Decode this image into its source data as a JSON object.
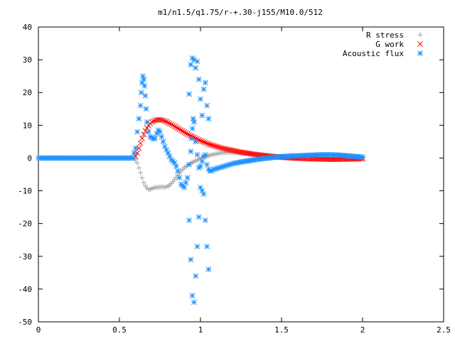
{
  "chart_data": {
    "type": "scatter",
    "title": "m1/n1.5/q1.75/r-+.30-j155/M10.0/512",
    "xlabel": "",
    "ylabel": "",
    "xlim": [
      0,
      2.5
    ],
    "ylim": [
      -50,
      40
    ],
    "x_ticks": [
      0,
      0.5,
      1,
      1.5,
      2,
      2.5
    ],
    "x_tick_labels": [
      "0",
      "0.5",
      "1",
      "1.5",
      "2",
      "2.5"
    ],
    "y_ticks": [
      40,
      30,
      20,
      10,
      0,
      -10,
      -20,
      -30,
      -40,
      -50
    ],
    "y_tick_labels": [
      "40",
      "30",
      "20",
      "10",
      "0",
      "-10",
      "-20",
      "-30",
      "-40",
      "-50"
    ],
    "grid": false,
    "legend_position": "top-right",
    "series": [
      {
        "name": "R stress",
        "marker": "plus",
        "color": "#a0a0a0",
        "x": [
          0.0,
          0.1,
          0.2,
          0.3,
          0.4,
          0.5,
          0.58,
          0.6,
          0.61,
          0.62,
          0.63,
          0.64,
          0.65,
          0.66,
          0.67,
          0.68,
          0.69,
          0.7,
          0.72,
          0.74,
          0.76,
          0.78,
          0.8,
          0.82,
          0.84,
          0.86,
          0.88,
          0.9,
          0.92,
          0.94,
          0.96,
          0.98,
          1.0,
          1.02,
          1.04,
          1.06,
          1.08,
          1.1,
          1.12,
          1.14,
          1.16,
          1.18,
          1.2,
          1.25,
          1.3,
          1.35,
          1.4,
          1.45,
          1.5,
          1.55,
          1.6,
          1.65,
          1.7,
          1.75,
          1.8,
          1.85,
          1.9,
          1.95,
          2.0
        ],
        "y": [
          0,
          0,
          0,
          0,
          0,
          0,
          0,
          -0.5,
          -1.5,
          -3,
          -4.5,
          -6,
          -7.5,
          -8.5,
          -9.2,
          -9.6,
          -9.6,
          -9.3,
          -9.0,
          -8.9,
          -8.8,
          -8.9,
          -8.6,
          -7.8,
          -6.5,
          -5.2,
          -4.0,
          -3.0,
          -2.2,
          -1.6,
          -1.1,
          -0.6,
          -0.1,
          0.3,
          0.6,
          0.9,
          1.1,
          1.3,
          1.5,
          1.6,
          1.7,
          1.7,
          1.6,
          1.5,
          1.3,
          1.1,
          0.9,
          0.7,
          0.5,
          0.4,
          0.3,
          0.2,
          0.1,
          0.05,
          0.0,
          0.0,
          0.0,
          0.0,
          0.0
        ]
      },
      {
        "name": "G work",
        "marker": "cross",
        "color": "#ff0000",
        "x": [
          0.6,
          0.61,
          0.62,
          0.63,
          0.64,
          0.65,
          0.66,
          0.67,
          0.68,
          0.69,
          0.7,
          0.71,
          0.72,
          0.73,
          0.74,
          0.75,
          0.76,
          0.77,
          0.78,
          0.79,
          0.8,
          0.82,
          0.84,
          0.86,
          0.88,
          0.9,
          0.92,
          0.94,
          0.96,
          0.98,
          1.0,
          1.02,
          1.04,
          1.06,
          1.08,
          1.1,
          1.12,
          1.14,
          1.16,
          1.18,
          1.2,
          1.25,
          1.3,
          1.35,
          1.4,
          1.45,
          1.5,
          1.55,
          1.6,
          1.65,
          1.7,
          1.75,
          1.8,
          1.85,
          1.9,
          1.95,
          2.0
        ],
        "y": [
          0.5,
          1.5,
          3,
          4.5,
          6,
          7.2,
          8.3,
          9.2,
          9.9,
          10.5,
          11.0,
          11.3,
          11.5,
          11.6,
          11.7,
          11.7,
          11.6,
          11.5,
          11.3,
          11.1,
          10.8,
          10.3,
          9.7,
          9.1,
          8.5,
          7.9,
          7.3,
          6.8,
          6.3,
          5.8,
          5.3,
          4.9,
          4.5,
          4.1,
          3.8,
          3.5,
          3.2,
          2.9,
          2.7,
          2.5,
          2.3,
          1.8,
          1.4,
          1.0,
          0.7,
          0.4,
          0.2,
          0.05,
          -0.1,
          -0.2,
          -0.3,
          -0.35,
          -0.4,
          -0.4,
          -0.35,
          -0.3,
          -0.2
        ]
      },
      {
        "name": "Acoustic flux",
        "marker": "star",
        "color": "#1e90ff",
        "x": [
          0.0,
          0.1,
          0.2,
          0.3,
          0.4,
          0.5,
          0.58,
          0.6,
          0.61,
          0.62,
          0.63,
          0.635,
          0.64,
          0.645,
          0.65,
          0.655,
          0.66,
          0.665,
          0.67,
          0.68,
          0.69,
          0.7,
          0.71,
          0.72,
          0.73,
          0.74,
          0.75,
          0.76,
          0.77,
          0.78,
          0.79,
          0.8,
          0.81,
          0.82,
          0.83,
          0.84,
          0.85,
          0.86,
          0.87,
          0.88,
          0.9,
          0.92,
          0.93,
          0.94,
          0.945,
          0.95,
          0.955,
          0.96,
          0.97,
          0.98,
          0.99,
          1.0,
          1.01,
          1.02,
          1.03,
          1.04,
          1.05,
          1.06,
          1.07,
          1.08,
          1.1,
          1.12,
          1.14,
          1.16,
          1.18,
          1.2,
          1.25,
          1.3,
          1.35,
          1.4,
          1.45,
          1.5,
          1.55,
          1.6,
          1.65,
          1.7,
          1.75,
          1.8,
          1.85,
          1.9,
          1.95,
          2.0,
          0.93,
          0.94,
          0.95,
          0.96,
          0.97,
          0.98,
          0.99,
          1.0,
          1.01,
          1.02,
          1.03,
          1.04,
          1.05,
          0.93,
          0.94,
          0.95,
          0.96,
          0.97,
          1.0,
          1.02,
          1.04,
          1.05
        ],
        "y": [
          0,
          0,
          0,
          0,
          0,
          0,
          0,
          3,
          8,
          12,
          16,
          20,
          23,
          25,
          24,
          22,
          19,
          15,
          11,
          8,
          6.5,
          6.2,
          5.8,
          6.0,
          7.5,
          8.5,
          8.0,
          6.5,
          5.0,
          3.5,
          2.5,
          1.5,
          0.5,
          -0.5,
          -1.0,
          -1.5,
          -2.5,
          -4.0,
          -6.0,
          -8.0,
          -9.0,
          -6.0,
          -2.0,
          2.0,
          6.0,
          9.0,
          12.0,
          11.0,
          5.0,
          1.0,
          -3.0,
          -2.5,
          -1.0,
          0.5,
          1.0,
          -2.0,
          -3.5,
          -4.0,
          -3.8,
          -3.5,
          -3.2,
          -2.9,
          -2.6,
          -2.3,
          -2.0,
          -1.7,
          -1.2,
          -0.8,
          -0.4,
          -0.1,
          0.2,
          0.4,
          0.6,
          0.7,
          0.8,
          0.9,
          1.0,
          1.0,
          0.9,
          0.7,
          0.5,
          0.3,
          19.5,
          28.5,
          30.5,
          30.0,
          27.5,
          29.5,
          24.0,
          18.0,
          13.0,
          21.0,
          23.0,
          16.0,
          12.0,
          -19.0,
          -31.0,
          -42.0,
          -44.0,
          -36.0,
          -9.0,
          -11.0,
          -27.0,
          -34.0
        ]
      }
    ]
  }
}
